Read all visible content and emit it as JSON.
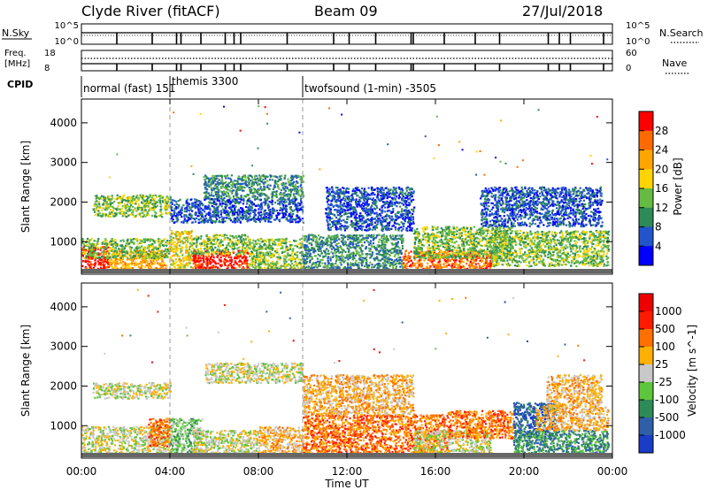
{
  "header": {
    "station": "Clyde River (fitACF)",
    "beam": "Beam 09",
    "date": "27/Jul/2018"
  },
  "strip_panels": {
    "nsky": {
      "left_label": "N.Sky",
      "left_ticks": [
        "10^5",
        "10^0"
      ],
      "right_ticks": [
        "10^5",
        "10^0"
      ],
      "right_label": "N.Search"
    },
    "freq": {
      "left_label_1": "Freq.",
      "left_label_2": "[MHz]",
      "left_ticks": [
        "18",
        "8"
      ],
      "right_ticks": [
        "60",
        "0"
      ],
      "right_label": "Nave"
    },
    "cpid": {
      "label": "CPID",
      "modes": [
        {
          "name": "normal (fast) 151",
          "start_hour": 0,
          "end_hour": 4
        },
        {
          "name": "themis 3300",
          "start_hour": 4,
          "end_hour": 10
        },
        {
          "name": "twofsound (1-min) -3505",
          "start_hour": 10,
          "end_hour": 24
        }
      ]
    }
  },
  "axes": {
    "xlabel": "Time UT",
    "ylabel": "Slant Range [km]",
    "x_tick_labels": [
      "00:00",
      "04:00",
      "08:00",
      "12:00",
      "16:00",
      "20:00",
      "00:00"
    ],
    "y_tick_labels": [
      "1000",
      "2000",
      "3000",
      "4000"
    ]
  },
  "chart_data": [
    {
      "type": "heatmap",
      "panel": "power",
      "x_range_hours": [
        0,
        24
      ],
      "y_range_km": [
        180,
        4600
      ],
      "mode_boundaries_hours": [
        4,
        10
      ],
      "colorbar": {
        "label": "Power [dB]",
        "tick_labels": [
          "4",
          "8",
          "12",
          "16",
          "20",
          "24",
          "28"
        ],
        "range": [
          0,
          32
        ],
        "colors": [
          "#0000ff",
          "#2255cc",
          "#2e8b57",
          "#66bb44",
          "#ffd400",
          "#ffa500",
          "#ff6a00",
          "#ff0000"
        ]
      },
      "scatter_regions": [
        {
          "t": [
            0.0,
            1.2
          ],
          "r": [
            250,
            900
          ],
          "level": 7
        },
        {
          "t": [
            1.2,
            3.8
          ],
          "r": [
            300,
            800
          ],
          "level": 5
        },
        {
          "t": [
            0.0,
            4.0
          ],
          "r": [
            600,
            1100
          ],
          "level": 3
        },
        {
          "t": [
            0.5,
            4.0
          ],
          "r": [
            1650,
            2200
          ],
          "level": 3
        },
        {
          "t": [
            4.0,
            5.0
          ],
          "r": [
            300,
            1300
          ],
          "level": 4
        },
        {
          "t": [
            5.0,
            7.5
          ],
          "r": [
            250,
            800
          ],
          "level": 7
        },
        {
          "t": [
            5.0,
            7.5
          ],
          "r": [
            700,
            1200
          ],
          "level": 3
        },
        {
          "t": [
            7.5,
            10.0
          ],
          "r": [
            300,
            1100
          ],
          "level": 3
        },
        {
          "t": [
            5.5,
            10.0
          ],
          "r": [
            2100,
            2700
          ],
          "level": 2
        },
        {
          "t": [
            4.0,
            10.0
          ],
          "r": [
            1500,
            2100
          ],
          "level": 1
        },
        {
          "t": [
            10.0,
            14.5
          ],
          "r": [
            300,
            1200
          ],
          "level": 2
        },
        {
          "t": [
            11.0,
            15.0
          ],
          "r": [
            1300,
            2400
          ],
          "level": 1
        },
        {
          "t": [
            14.5,
            18.5
          ],
          "r": [
            250,
            800
          ],
          "level": 6
        },
        {
          "t": [
            15.0,
            19.5
          ],
          "r": [
            600,
            1400
          ],
          "level": 3
        },
        {
          "t": [
            18.5,
            23.8
          ],
          "r": [
            400,
            1300
          ],
          "level": 3
        },
        {
          "t": [
            18.0,
            23.5
          ],
          "r": [
            1400,
            2400
          ],
          "level": 1
        }
      ]
    },
    {
      "type": "heatmap",
      "panel": "velocity",
      "x_range_hours": [
        0,
        24
      ],
      "y_range_km": [
        180,
        4600
      ],
      "mode_boundaries_hours": [
        4,
        10
      ],
      "colorbar": {
        "label": "Velocity [m s^-1]",
        "tick_labels": [
          "1000",
          "500",
          "100",
          "25",
          "-25",
          "-100",
          "-500",
          "-1000"
        ],
        "colors": [
          "#1a3cc8",
          "#2e5fa8",
          "#2e8b57",
          "#5ec63c",
          "#c8c8c8",
          "#ffb000",
          "#ff7000",
          "#ff1a00",
          "#ee0000"
        ]
      },
      "scatter_regions": [
        {
          "t": [
            0.0,
            4.0
          ],
          "r": [
            250,
            1000
          ],
          "level": 4
        },
        {
          "t": [
            0.5,
            4.0
          ],
          "r": [
            1700,
            2100
          ],
          "level": 4
        },
        {
          "t": [
            3.0,
            4.0
          ],
          "r": [
            500,
            1200
          ],
          "level": 6
        },
        {
          "t": [
            4.0,
            5.5
          ],
          "r": [
            300,
            1200
          ],
          "level": 3
        },
        {
          "t": [
            5.0,
            8.0
          ],
          "r": [
            250,
            900
          ],
          "level": 4
        },
        {
          "t": [
            5.5,
            10.0
          ],
          "r": [
            2100,
            2600
          ],
          "level": 4
        },
        {
          "t": [
            8.0,
            10.0
          ],
          "r": [
            300,
            1000
          ],
          "level": 5
        },
        {
          "t": [
            10.0,
            16.5
          ],
          "r": [
            300,
            1300
          ],
          "level": 6
        },
        {
          "t": [
            10.0,
            15.0
          ],
          "r": [
            1300,
            2300
          ],
          "level": 5
        },
        {
          "t": [
            15.0,
            18.5
          ],
          "r": [
            300,
            900
          ],
          "level": 4
        },
        {
          "t": [
            16.5,
            19.5
          ],
          "r": [
            700,
            1400
          ],
          "level": 6
        },
        {
          "t": [
            19.5,
            21.5
          ],
          "r": [
            700,
            1600
          ],
          "level": 1
        },
        {
          "t": [
            19.5,
            23.8
          ],
          "r": [
            300,
            900
          ],
          "level": 2
        },
        {
          "t": [
            20.5,
            23.8
          ],
          "r": [
            900,
            1500
          ],
          "level": 5
        },
        {
          "t": [
            21.0,
            23.5
          ],
          "r": [
            1500,
            2300
          ],
          "level": 5
        }
      ]
    }
  ]
}
